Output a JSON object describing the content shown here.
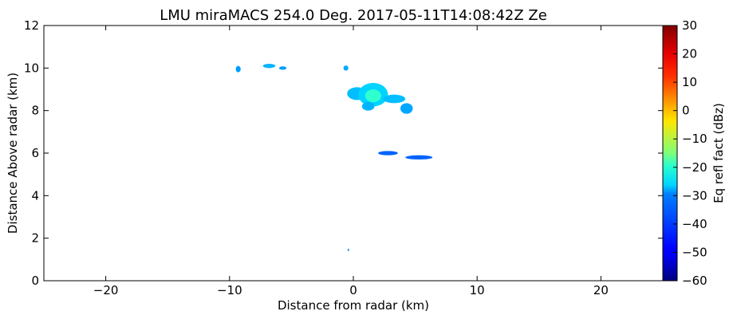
{
  "chart_data": {
    "type": "heatmap",
    "title": "LMU miraMACS 254.0 Deg. 2017-05-11T14:08:42Z  Ze",
    "xlabel": "Distance from radar (km)",
    "ylabel": "Distance Above radar  (km)",
    "xlim": [
      -25,
      25
    ],
    "ylim": [
      0,
      12
    ],
    "xticks": [
      -20,
      -10,
      0,
      10,
      20
    ],
    "xtick_labels": [
      "−20",
      "−10",
      "0",
      "10",
      "20"
    ],
    "yticks": [
      0,
      2,
      4,
      6,
      8,
      10,
      12
    ],
    "ytick_labels": [
      "0",
      "2",
      "4",
      "6",
      "8",
      "10",
      "12"
    ],
    "grid": false,
    "colorbar": {
      "label": "Eq refl fact (dBz)",
      "range": [
        -60,
        30
      ],
      "ticks": [
        -60,
        -50,
        -40,
        -30,
        -20,
        -10,
        0,
        10,
        20,
        30
      ],
      "tick_labels": [
        "−60",
        "−50",
        "−40",
        "−30",
        "−20",
        "−10",
        "0",
        "10",
        "20",
        "30"
      ],
      "colormap": "jet"
    },
    "echoes": [
      {
        "x": -9.3,
        "y": 9.95,
        "rx": 0.2,
        "ry": 0.15,
        "dbz": -35
      },
      {
        "x": -6.8,
        "y": 10.1,
        "rx": 0.5,
        "ry": 0.1,
        "dbz": -33
      },
      {
        "x": -5.7,
        "y": 10.0,
        "rx": 0.3,
        "ry": 0.08,
        "dbz": -35
      },
      {
        "x": -0.6,
        "y": 10.0,
        "rx": 0.2,
        "ry": 0.12,
        "dbz": -34
      },
      {
        "x": 0.3,
        "y": 8.8,
        "rx": 0.8,
        "ry": 0.3,
        "dbz": -32
      },
      {
        "x": 1.6,
        "y": 8.75,
        "rx": 1.2,
        "ry": 0.55,
        "dbz": -30
      },
      {
        "x": 1.6,
        "y": 8.7,
        "rx": 0.65,
        "ry": 0.3,
        "dbz": -22
      },
      {
        "x": 3.3,
        "y": 8.55,
        "rx": 0.9,
        "ry": 0.2,
        "dbz": -32
      },
      {
        "x": 4.3,
        "y": 8.1,
        "rx": 0.5,
        "ry": 0.25,
        "dbz": -34
      },
      {
        "x": 1.2,
        "y": 8.2,
        "rx": 0.5,
        "ry": 0.2,
        "dbz": -33
      },
      {
        "x": 2.8,
        "y": 6.0,
        "rx": 0.8,
        "ry": 0.1,
        "dbz": -40
      },
      {
        "x": 5.3,
        "y": 5.8,
        "rx": 1.1,
        "ry": 0.1,
        "dbz": -40
      },
      {
        "x": -0.4,
        "y": 1.45,
        "rx": 0.05,
        "ry": 0.05,
        "dbz": -38
      }
    ]
  }
}
